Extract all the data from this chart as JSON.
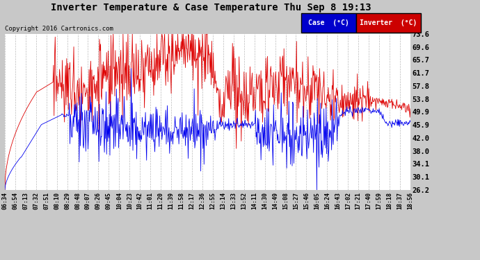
{
  "title": "Inverter Temperature & Case Temperature Thu Sep 8 19:13",
  "copyright": "Copyright 2016 Cartronics.com",
  "y_ticks": [
    26.2,
    30.1,
    34.1,
    38.0,
    42.0,
    45.9,
    49.9,
    53.8,
    57.8,
    61.7,
    65.7,
    69.6,
    73.6
  ],
  "x_labels": [
    "06:34",
    "06:54",
    "07:13",
    "07:32",
    "07:51",
    "08:10",
    "08:29",
    "08:48",
    "09:07",
    "09:26",
    "09:45",
    "10:04",
    "10:23",
    "10:42",
    "11:01",
    "11:20",
    "11:39",
    "11:58",
    "12:17",
    "12:36",
    "12:55",
    "13:14",
    "13:33",
    "13:52",
    "14:11",
    "14:30",
    "14:49",
    "15:08",
    "15:27",
    "15:46",
    "16:05",
    "16:24",
    "16:43",
    "17:02",
    "17:21",
    "17:40",
    "17:59",
    "18:18",
    "18:37",
    "18:56"
  ],
  "bg_color": "#c8c8c8",
  "plot_bg_color": "#ffffff",
  "grid_color": "#aaaaaa",
  "case_color": "#0000ee",
  "inverter_color": "#dd0000",
  "legend_case_bg": "#0000cc",
  "legend_inverter_bg": "#cc0000",
  "legend_text_color": "#ffffff"
}
